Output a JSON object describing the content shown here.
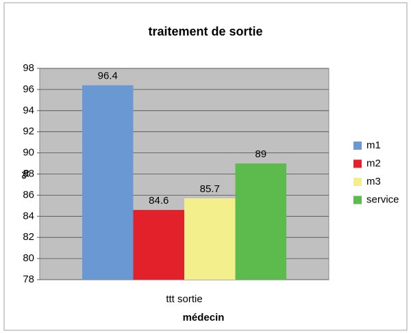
{
  "chart_data": {
    "type": "bar",
    "title": "traitement de sortie",
    "categories": [
      "ttt sortie"
    ],
    "series": [
      {
        "name": "m1",
        "color": "#6a98d2",
        "values": [
          96.4
        ]
      },
      {
        "name": "m2",
        "color": "#e3212b",
        "values": [
          84.6
        ]
      },
      {
        "name": "m3",
        "color": "#f3ef8c",
        "values": [
          85.7
        ]
      },
      {
        "name": "service",
        "color": "#5dbb4d",
        "values": [
          89
        ]
      }
    ],
    "ylabel": "%",
    "xlabel": "médecin",
    "ylim": [
      78,
      98
    ],
    "yticks": [
      78,
      80,
      82,
      84,
      86,
      88,
      90,
      92,
      94,
      96,
      98
    ],
    "grid": true,
    "legend": "right"
  }
}
